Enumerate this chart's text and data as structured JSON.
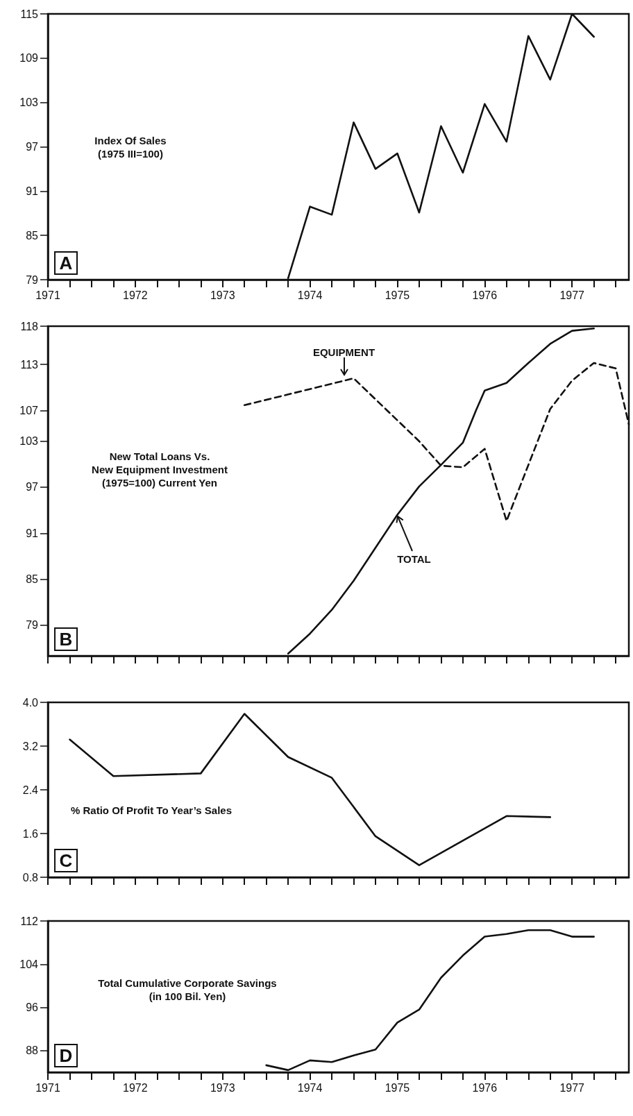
{
  "chart_data": [
    {
      "type": "line",
      "title": "Index Of Sales\n(1975 III=100)",
      "annotations": [
        "A"
      ],
      "legend": false,
      "grid": false,
      "marker": "none",
      "tick_labels": true,
      "xlim": [
        1971,
        1977.65
      ],
      "ylim": [
        79,
        115
      ],
      "yticks": [
        79,
        85,
        91,
        97,
        103,
        109,
        115
      ],
      "xticks": [
        1971,
        {
          "value": 1971.25,
          "label": null
        },
        {
          "value": 1971.5,
          "label": null
        },
        {
          "value": 1971.75,
          "label": null
        },
        1972,
        {
          "value": 1972.25,
          "label": null
        },
        {
          "value": 1972.5,
          "label": null
        },
        {
          "value": 1972.75,
          "label": null
        },
        1973,
        {
          "value": 1973.25,
          "label": null
        },
        {
          "value": 1973.5,
          "label": null
        },
        {
          "value": 1973.75,
          "label": null
        },
        1974,
        {
          "value": 1974.25,
          "label": null
        },
        {
          "value": 1974.5,
          "label": null
        },
        {
          "value": 1974.75,
          "label": null
        },
        1975,
        {
          "value": 1975.25,
          "label": null
        },
        {
          "value": 1975.5,
          "label": null
        },
        {
          "value": 1975.75,
          "label": null
        },
        1976,
        {
          "value": 1976.25,
          "label": null
        },
        {
          "value": 1976.5,
          "label": null
        },
        {
          "value": 1976.75,
          "label": null
        },
        1977,
        {
          "value": 1977.25,
          "label": null
        },
        {
          "value": 1977.5,
          "label": null
        }
      ],
      "series": [
        {
          "color": "#111111",
          "line_style": "solid",
          "x": [
            1973.75,
            1974,
            1974.25,
            1974.5,
            1974.75,
            1975,
            1975.25,
            1975.5,
            1975.75,
            1976,
            1976.25,
            1976.5,
            1976.75,
            1977,
            1977.25
          ],
          "values": [
            79.2,
            88.9,
            87.8,
            100.3,
            94.0,
            96.1,
            88.1,
            99.8,
            93.5,
            102.8,
            97.7,
            112.0,
            106.1,
            115,
            111.9
          ]
        }
      ]
    },
    {
      "type": "line",
      "title": "New Total Loans Vs.\nNew Equipment Investment\n(1975=100) Current Yen",
      "annotations": [
        "B"
      ],
      "legend": false,
      "grid": false,
      "marker": "none",
      "tick_labels": "y",
      "xlim": [
        1971,
        1977.65
      ],
      "ylim": [
        75,
        118
      ],
      "yticks": [
        79,
        85,
        91,
        97,
        103,
        107,
        113,
        118
      ],
      "xticks": [
        1971,
        {
          "value": 1971.25,
          "label": null
        },
        {
          "value": 1971.5,
          "label": null
        },
        {
          "value": 1971.75,
          "label": null
        },
        1972,
        {
          "value": 1972.25,
          "label": null
        },
        {
          "value": 1972.5,
          "label": null
        },
        {
          "value": 1972.75,
          "label": null
        },
        1973,
        {
          "value": 1973.25,
          "label": null
        },
        {
          "value": 1973.5,
          "label": null
        },
        {
          "value": 1973.75,
          "label": null
        },
        1974,
        {
          "value": 1974.25,
          "label": null
        },
        {
          "value": 1974.5,
          "label": null
        },
        {
          "value": 1974.75,
          "label": null
        },
        1975,
        {
          "value": 1975.25,
          "label": null
        },
        {
          "value": 1975.5,
          "label": null
        },
        {
          "value": 1975.75,
          "label": null
        },
        1976,
        {
          "value": 1976.25,
          "label": null
        },
        {
          "value": 1976.5,
          "label": null
        },
        {
          "value": 1976.75,
          "label": null
        },
        1977,
        {
          "value": 1977.25,
          "label": null
        },
        {
          "value": 1977.5,
          "label": null
        }
      ],
      "series": [
        {
          "name": "EQUIPMENT",
          "color": "#111111",
          "line_style": "dashed",
          "x": [
            1973.25,
            1974.5,
            1975.25,
            1975.5,
            1975.75,
            1976,
            1976.25,
            1976.75,
            1977,
            1977.25,
            1977.5,
            1977.65
          ],
          "values": [
            107.7,
            111.2,
            103.0,
            99.8,
            99.6,
            102.0,
            92.6,
            107.2,
            110.9,
            113.2,
            112.5,
            105.2
          ]
        },
        {
          "name": "TOTAL",
          "color": "#111111",
          "line_style": "solid",
          "x": [
            1973.75,
            1974,
            1974.25,
            1974.5,
            1974.75,
            1975,
            1975.25,
            1975.5,
            1975.75,
            1975.9,
            1976,
            1976.25,
            1976.5,
            1976.75,
            1977,
            1977.25
          ],
          "values": [
            75.3,
            77.9,
            81.0,
            84.8,
            89.1,
            93.4,
            97.1,
            99.9,
            102.8,
            107.0,
            109.6,
            110.6,
            113.2,
            115.7,
            117.4,
            117.7
          ]
        }
      ]
    },
    {
      "type": "line",
      "title": "% Ratio Of Profit To Year’s Sales",
      "annotations": [
        "C"
      ],
      "legend": false,
      "grid": false,
      "marker": "none",
      "tick_labels": "y",
      "xlim": [
        1971,
        1977.65
      ],
      "ylim": [
        0.8,
        4.0
      ],
      "yticks": [
        0.8,
        1.6,
        2.4,
        3.2,
        {
          "value": 4.0,
          "label": "4.0"
        }
      ],
      "xticks": [
        1971,
        {
          "value": 1971.25,
          "label": null
        },
        {
          "value": 1971.5,
          "label": null
        },
        {
          "value": 1971.75,
          "label": null
        },
        1972,
        {
          "value": 1972.25,
          "label": null
        },
        {
          "value": 1972.5,
          "label": null
        },
        {
          "value": 1972.75,
          "label": null
        },
        1973,
        {
          "value": 1973.25,
          "label": null
        },
        {
          "value": 1973.5,
          "label": null
        },
        {
          "value": 1973.75,
          "label": null
        },
        1974,
        {
          "value": 1974.25,
          "label": null
        },
        {
          "value": 1974.5,
          "label": null
        },
        {
          "value": 1974.75,
          "label": null
        },
        1975,
        {
          "value": 1975.25,
          "label": null
        },
        {
          "value": 1975.5,
          "label": null
        },
        {
          "value": 1975.75,
          "label": null
        },
        1976,
        {
          "value": 1976.25,
          "label": null
        },
        {
          "value": 1976.5,
          "label": null
        },
        {
          "value": 1976.75,
          "label": null
        },
        1977,
        {
          "value": 1977.25,
          "label": null
        },
        {
          "value": 1977.5,
          "label": null
        }
      ],
      "series": [
        {
          "color": "#111111",
          "line_style": "solid",
          "x": [
            1971.25,
            1971.75,
            1972.75,
            1973.25,
            1973.75,
            1974.25,
            1974.75,
            1975.25,
            1976.25,
            1976.75
          ],
          "values": [
            3.32,
            2.65,
            2.7,
            3.79,
            3.0,
            2.62,
            1.55,
            1.02,
            1.92,
            1.9
          ]
        }
      ]
    },
    {
      "type": "line",
      "title": "Total Cumulative Corporate Savings\n(in 100 Bil. Yen)",
      "annotations": [
        "D"
      ],
      "legend": false,
      "grid": false,
      "marker": "none",
      "tick_labels": true,
      "xlim": [
        1971,
        1977.65
      ],
      "ylim": [
        84,
        112
      ],
      "yticks": [
        88,
        96,
        104,
        112
      ],
      "xticks": [
        1971,
        {
          "value": 1971.25,
          "label": null
        },
        {
          "value": 1971.5,
          "label": null
        },
        {
          "value": 1971.75,
          "label": null
        },
        1972,
        {
          "value": 1972.25,
          "label": null
        },
        {
          "value": 1972.5,
          "label": null
        },
        {
          "value": 1972.75,
          "label": null
        },
        1973,
        {
          "value": 1973.25,
          "label": null
        },
        {
          "value": 1973.5,
          "label": null
        },
        {
          "value": 1973.75,
          "label": null
        },
        1974,
        {
          "value": 1974.25,
          "label": null
        },
        {
          "value": 1974.5,
          "label": null
        },
        {
          "value": 1974.75,
          "label": null
        },
        1975,
        {
          "value": 1975.25,
          "label": null
        },
        {
          "value": 1975.5,
          "label": null
        },
        {
          "value": 1975.75,
          "label": null
        },
        1976,
        {
          "value": 1976.25,
          "label": null
        },
        {
          "value": 1976.5,
          "label": null
        },
        {
          "value": 1976.75,
          "label": null
        },
        1977,
        {
          "value": 1977.25,
          "label": null
        },
        {
          "value": 1977.5,
          "label": null
        }
      ],
      "series": [
        {
          "color": "#111111",
          "line_style": "solid",
          "x": [
            1973.5,
            1973.75,
            1974,
            1974.25,
            1974.5,
            1974.75,
            1975,
            1975.25,
            1975.5,
            1975.75,
            1976,
            1976.25,
            1976.5,
            1976.75,
            1977,
            1977.25
          ],
          "values": [
            85.3,
            84.4,
            86.2,
            85.9,
            87.1,
            88.2,
            93.2,
            95.6,
            101.5,
            105.6,
            109.1,
            109.6,
            110.3,
            110.3,
            109.1,
            109.1
          ]
        }
      ]
    }
  ]
}
